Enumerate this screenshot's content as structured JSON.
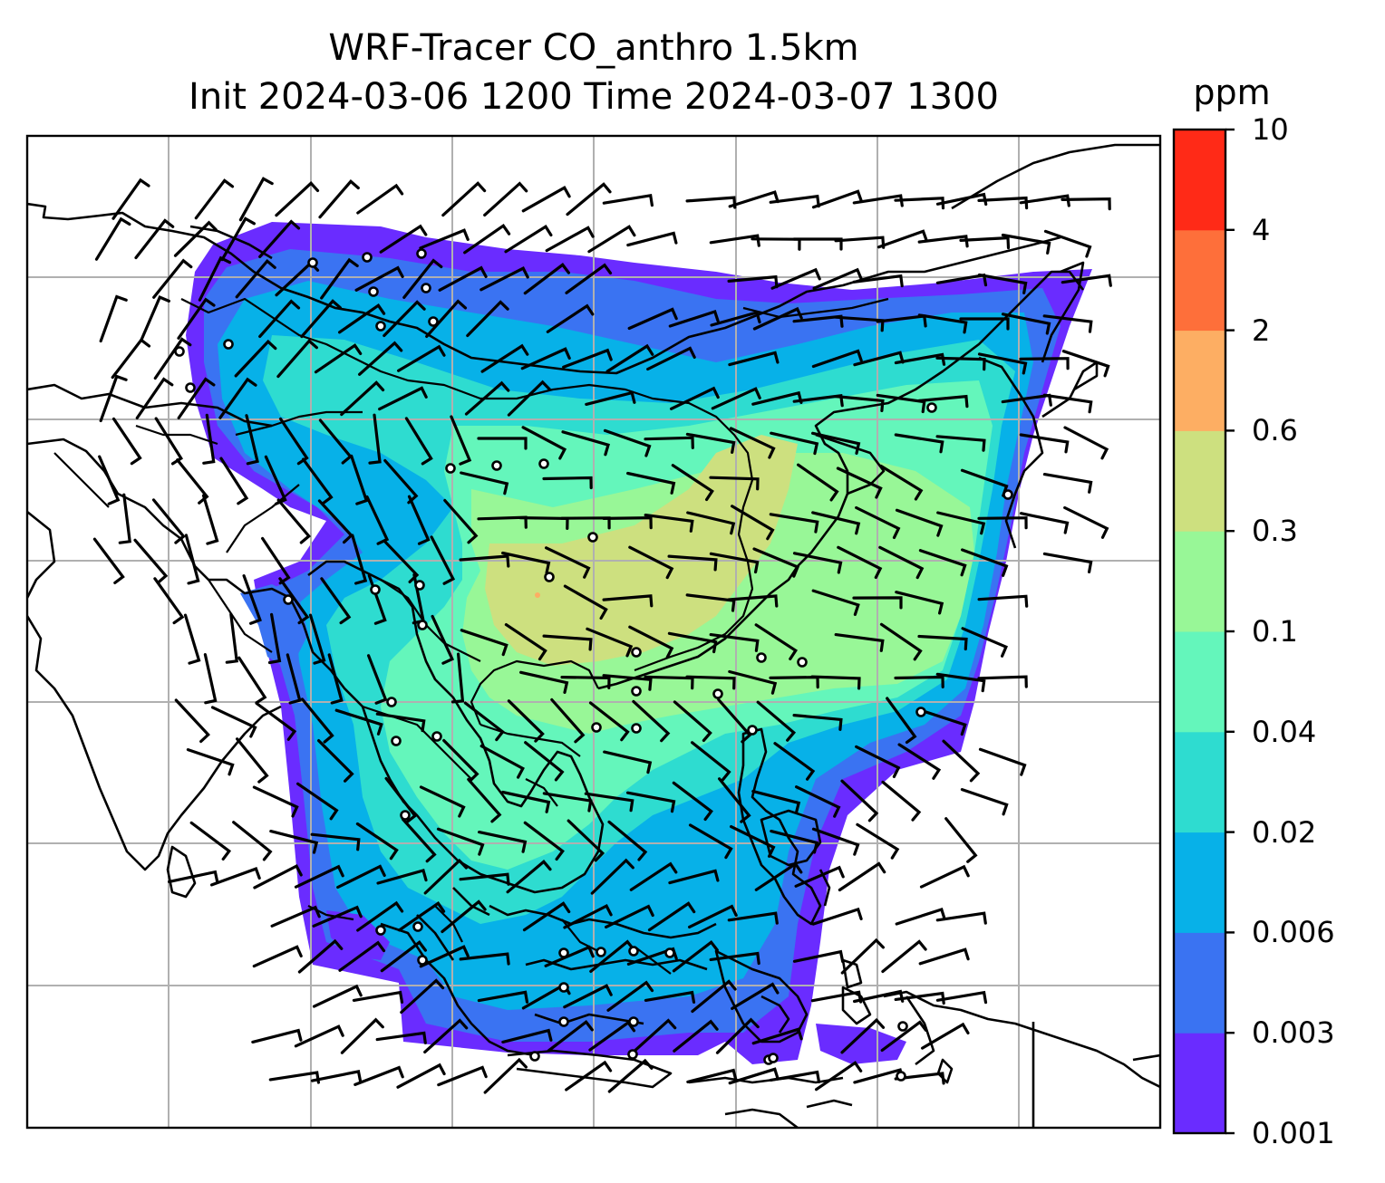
{
  "title": {
    "line1": "WRF-Tracer CO_anthro 1.5km",
    "line2": "Init 2024-03-06 1200 Time 2024-03-07 1300"
  },
  "colorbar": {
    "unit": "ppm",
    "ticks": [
      "10",
      "4",
      "2",
      "0.6",
      "0.3",
      "0.1",
      "0.04",
      "0.02",
      "0.006",
      "0.003",
      "0.001"
    ],
    "colors": [
      "#6a2cff",
      "#3a73f2",
      "#07b1e8",
      "#2edcd0",
      "#64f6bb",
      "#98f797",
      "#cde07f",
      "#fdae63",
      "#fe6f3a",
      "#ff2a17"
    ]
  },
  "map": {
    "gridlines": true,
    "features": [
      "coastlines",
      "country-borders",
      "wind-barbs",
      "station-markers",
      "co-concentration-field"
    ]
  }
}
